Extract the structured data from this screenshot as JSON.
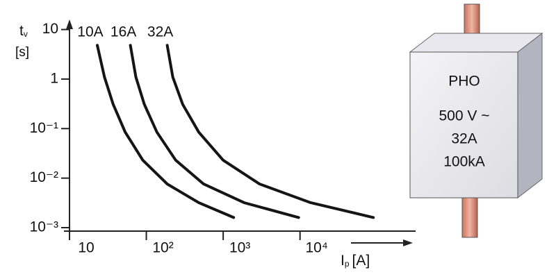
{
  "chart_data": {
    "type": "line",
    "ylabel": {
      "symbol": "t",
      "subscript": "v",
      "unit": "[s]"
    },
    "xlabel": {
      "symbol": "I",
      "subscript": "p",
      "unit": "[A]"
    },
    "log_x": true,
    "log_y": true,
    "color": "#151515",
    "xlim": [
      10,
      300000
    ],
    "xticks": [
      10,
      {
        "value": 100,
        "label": "10²"
      },
      {
        "value": 1000,
        "label": "10³"
      },
      {
        "value": 10000,
        "label": "10⁴"
      }
    ],
    "ylim": [
      0.001,
      15
    ],
    "yticks": [
      10,
      1,
      {
        "value": 0.1,
        "label": "10⁻¹"
      },
      {
        "value": 0.01,
        "label": "10⁻²"
      },
      {
        "value": 0.001,
        "label": "10⁻³"
      }
    ],
    "series": [
      {
        "name": "10A",
        "x": [
          23,
          28.5,
          37,
          53,
          90,
          187,
          480,
          1370
        ],
        "values": [
          4.8,
          1.1,
          0.31,
          0.085,
          0.023,
          0.0076,
          0.0032,
          0.0016
        ]
      },
      {
        "name": "16A",
        "x": [
          62,
          73,
          94,
          137,
          241,
          556,
          1870,
          9600
        ],
        "values": [
          4.8,
          1.1,
          0.31,
          0.085,
          0.023,
          0.0076,
          0.0032,
          0.0016
        ]
      },
      {
        "name": "32A",
        "x": [
          187,
          221,
          297,
          480,
          1000,
          2970,
          13700,
          90000
        ],
        "values": [
          4.8,
          1.1,
          0.31,
          0.085,
          0.023,
          0.0076,
          0.0032,
          0.0016
        ]
      }
    ]
  },
  "illustration": {
    "lines": [
      "PHO",
      "500 V ~",
      "32A",
      "100kA"
    ]
  }
}
